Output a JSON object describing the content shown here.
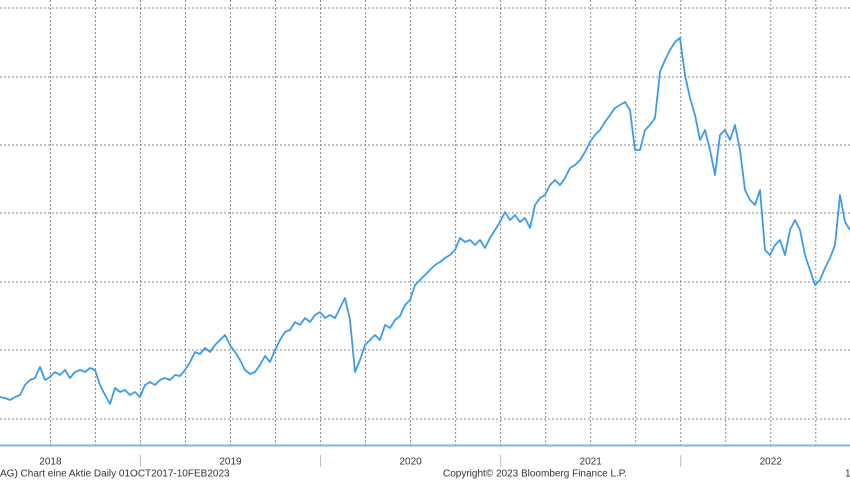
{
  "chart_data": {
    "type": "line",
    "footer": "AG) Chart eine Aktie  Daily 01OCT2017-10FEB2023",
    "copyright": "Copyright© 2023 Bloomberg Finance L.P.",
    "corner_label": "1",
    "xlim": [
      2018.22,
      2022.94
    ],
    "xlabels": [
      {
        "value": 2018.5,
        "label": "2018"
      },
      {
        "value": 2019.5,
        "label": "2019"
      },
      {
        "value": 2020.5,
        "label": "2020"
      },
      {
        "value": 2021.5,
        "label": "2021"
      },
      {
        "value": 2022.5,
        "label": "2022"
      }
    ],
    "xticks": [
      2019,
      2020,
      2021,
      2022
    ],
    "xgrid": [
      2018.5,
      2018.75,
      2019,
      2019.25,
      2019.5,
      2019.75,
      2020,
      2020.25,
      2020.5,
      2020.75,
      2021,
      2021.25,
      2021.5,
      2021.75,
      2022,
      2022.25,
      2022.5,
      2022.75
    ],
    "ylim": [
      0,
      445
    ],
    "ygrid": [
      26,
      95,
      163,
      232,
      300,
      368,
      437
    ],
    "grid": true,
    "color": "#3d9be9",
    "values": [
      48,
      47,
      45,
      48,
      50,
      60,
      65,
      67,
      78,
      65,
      68,
      73,
      70,
      75,
      67,
      73,
      75,
      73,
      77,
      75,
      60,
      50,
      41,
      57,
      53,
      55,
      50,
      53,
      48,
      60,
      63,
      60,
      65,
      67,
      65,
      70,
      69,
      75,
      83,
      93,
      91,
      97,
      93,
      100,
      105,
      110,
      100,
      93,
      85,
      75,
      71,
      73,
      80,
      89,
      83,
      95,
      105,
      113,
      115,
      123,
      120,
      127,
      123,
      130,
      133,
      127,
      130,
      127,
      137,
      147,
      125,
      73,
      85,
      100,
      105,
      110,
      105,
      120,
      117,
      125,
      129,
      140,
      145,
      160,
      165,
      170,
      175,
      180,
      183,
      187,
      190,
      195,
      207,
      203,
      205,
      200,
      205,
      197,
      207,
      215,
      223,
      233,
      225,
      230,
      223,
      227,
      217,
      240,
      247,
      250,
      260,
      265,
      260,
      267,
      277,
      280,
      285,
      293,
      303,
      310,
      315,
      323,
      330,
      337,
      340,
      343,
      335,
      295,
      295,
      315,
      320,
      327,
      373,
      385,
      395,
      403,
      407,
      370,
      347,
      330,
      305,
      315,
      295,
      270,
      310,
      315,
      305,
      320,
      295,
      255,
      245,
      240,
      255,
      195,
      190,
      200,
      205,
      190,
      215,
      225,
      215,
      190,
      175,
      160,
      165,
      177,
      187,
      200,
      250,
      223,
      215
    ]
  }
}
